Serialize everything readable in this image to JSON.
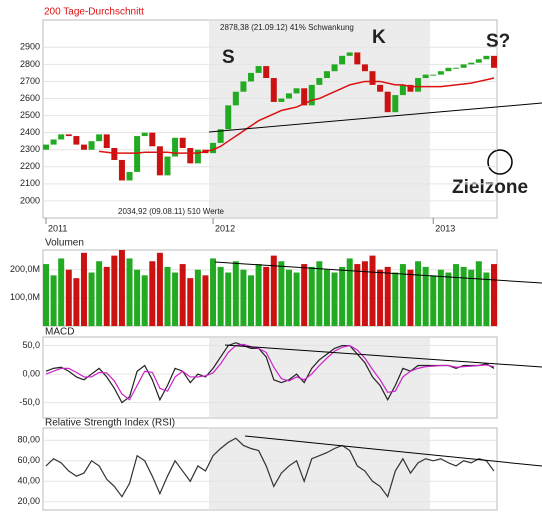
{
  "chart_data": [
    {
      "type": "candlestick",
      "categories": [
        "2011",
        null,
        null,
        null,
        null,
        null,
        null,
        null,
        null,
        null,
        null,
        null,
        null,
        null,
        null,
        null,
        null,
        null,
        null,
        null,
        null,
        null,
        "2012",
        null,
        null,
        null,
        null,
        null,
        null,
        null,
        null,
        null,
        null,
        null,
        null,
        null,
        null,
        null,
        null,
        null,
        null,
        null,
        null,
        null,
        null,
        null,
        null,
        null,
        null,
        null,
        null,
        "2013",
        null,
        null,
        null,
        null,
        null,
        null,
        null,
        null
      ],
      "open": [
        2300,
        2330,
        2360,
        2390,
        2380,
        2330,
        2300,
        2350,
        2390,
        2310,
        2240,
        2120,
        2170,
        2380,
        2400,
        2320,
        2150,
        2260,
        2370,
        2310,
        2220,
        2300,
        2280,
        2340,
        2420,
        2560,
        2640,
        2700,
        2750,
        2790,
        2720,
        2580,
        2600,
        2630,
        2660,
        2560,
        2680,
        2720,
        2760,
        2800,
        2850,
        2870,
        2800,
        2760,
        2680,
        2640,
        2520,
        2620,
        2680,
        2640,
        2720,
        2740,
        2740,
        2760,
        2780,
        2780,
        2800,
        2810,
        2830,
        2850
      ],
      "close": [
        2330,
        2360,
        2390,
        2380,
        2330,
        2300,
        2350,
        2390,
        2310,
        2240,
        2120,
        2170,
        2380,
        2400,
        2320,
        2150,
        2260,
        2370,
        2310,
        2220,
        2300,
        2280,
        2340,
        2420,
        2560,
        2640,
        2700,
        2750,
        2790,
        2720,
        2580,
        2600,
        2630,
        2660,
        2560,
        2680,
        2720,
        2760,
        2800,
        2850,
        2870,
        2800,
        2760,
        2680,
        2640,
        2520,
        2620,
        2680,
        2640,
        2720,
        2740,
        2740,
        2760,
        2780,
        2780,
        2800,
        2810,
        2830,
        2850,
        2780
      ],
      "up_color": "#22aa22",
      "down_color": "#cc1111",
      "ma": {
        "name": "200 Tage-Durchschnitt",
        "color": "#dd1111",
        "values": [
          null,
          null,
          null,
          null,
          null,
          null,
          null,
          2290,
          2285,
          2280,
          2280,
          2280,
          2280,
          2285,
          2285,
          2285,
          2285,
          2280,
          2280,
          2280,
          2280,
          2290,
          2300,
          2320,
          2350,
          2380,
          2410,
          2440,
          2470,
          2490,
          2510,
          2530,
          2540,
          2550,
          2570,
          2590,
          2600,
          2620,
          2640,
          2660,
          2680,
          2690,
          2700,
          2700,
          2700,
          2690,
          2680,
          2680,
          2670,
          2670,
          2670,
          2670,
          2670,
          2675,
          2680,
          2685,
          2690,
          2700,
          2710,
          2720
        ]
      },
      "ylim": [
        1900,
        3060
      ],
      "yticks": [
        2000,
        2100,
        2200,
        2300,
        2400,
        2500,
        2600,
        2700,
        2800,
        2900
      ],
      "annotations": [
        "2878,38 (21.09.12) 41% Schwankung",
        "2034,92 (09.08.11) 510 Werte",
        "S",
        "K",
        "S?",
        "Zielzone"
      ]
    },
    {
      "type": "bar",
      "title": "Volumen",
      "values": [
        220000000,
        180000000,
        240000000,
        200000000,
        170000000,
        260000000,
        190000000,
        230000000,
        210000000,
        250000000,
        270000000,
        240000000,
        200000000,
        180000000,
        230000000,
        260000000,
        210000000,
        190000000,
        220000000,
        170000000,
        200000000,
        180000000,
        240000000,
        210000000,
        190000000,
        230000000,
        200000000,
        180000000,
        220000000,
        210000000,
        250000000,
        230000000,
        200000000,
        190000000,
        220000000,
        210000000,
        230000000,
        200000000,
        190000000,
        210000000,
        240000000,
        220000000,
        230000000,
        250000000,
        200000000,
        210000000,
        190000000,
        220000000,
        200000000,
        230000000,
        210000000,
        180000000,
        200000000,
        190000000,
        220000000,
        210000000,
        200000000,
        230000000,
        190000000,
        220000000
      ],
      "ylim": [
        0,
        270000000
      ],
      "yticks": [
        {
          "value": 100000000,
          "label": "100,0M"
        },
        {
          "value": 200000000,
          "label": "200,0M"
        }
      ]
    },
    {
      "type": "line",
      "title": "MACD",
      "series": [
        {
          "color": "#222222",
          "values": [
            5,
            10,
            12,
            5,
            -5,
            -10,
            0,
            10,
            -5,
            -25,
            -50,
            -40,
            5,
            15,
            -10,
            -45,
            -20,
            10,
            5,
            -15,
            0,
            -5,
            10,
            30,
            50,
            55,
            50,
            45,
            45,
            30,
            -10,
            -15,
            -10,
            0,
            -15,
            10,
            25,
            35,
            45,
            50,
            50,
            35,
            20,
            -5,
            -20,
            -45,
            -20,
            10,
            5,
            15,
            15,
            15,
            15,
            15,
            10,
            15,
            15,
            15,
            18,
            10
          ]
        },
        {
          "color": "#cc22cc",
          "values": [
            0,
            5,
            10,
            10,
            3,
            -5,
            -5,
            3,
            2,
            -12,
            -35,
            -45,
            -20,
            5,
            3,
            -25,
            -30,
            -5,
            5,
            -5,
            -5,
            -3,
            2,
            18,
            38,
            50,
            52,
            48,
            45,
            38,
            12,
            -8,
            -12,
            -5,
            -10,
            0,
            15,
            28,
            40,
            47,
            50,
            42,
            28,
            8,
            -10,
            -32,
            -30,
            -5,
            5,
            10,
            13,
            14,
            15,
            15,
            12,
            13,
            14,
            15,
            16,
            13
          ]
        }
      ],
      "ylim": [
        -77,
        65
      ],
      "yticks": [
        {
          "value": -50,
          "label": "-50,0"
        },
        {
          "value": 0,
          "label": "0,00"
        },
        {
          "value": 50,
          "label": "50,0"
        }
      ]
    },
    {
      "type": "line",
      "title": "Relative Strength Index (RSI)",
      "series": [
        {
          "color": "#333333",
          "values": [
            55,
            62,
            58,
            50,
            45,
            48,
            60,
            55,
            42,
            35,
            25,
            38,
            65,
            60,
            45,
            28,
            45,
            60,
            50,
            40,
            55,
            50,
            65,
            72,
            78,
            82,
            75,
            72,
            70,
            55,
            35,
            48,
            55,
            60,
            40,
            62,
            65,
            68,
            72,
            75,
            70,
            55,
            50,
            40,
            35,
            25,
            50,
            62,
            48,
            58,
            62,
            60,
            62,
            58,
            55,
            60,
            58,
            62,
            60,
            50
          ]
        }
      ],
      "ylim": [
        12,
        92
      ],
      "yticks": [
        {
          "value": 20,
          "label": "20,00"
        },
        {
          "value": 40,
          "label": "40,00"
        },
        {
          "value": 60,
          "label": "60,00"
        },
        {
          "value": 80,
          "label": "80,00"
        }
      ]
    }
  ]
}
